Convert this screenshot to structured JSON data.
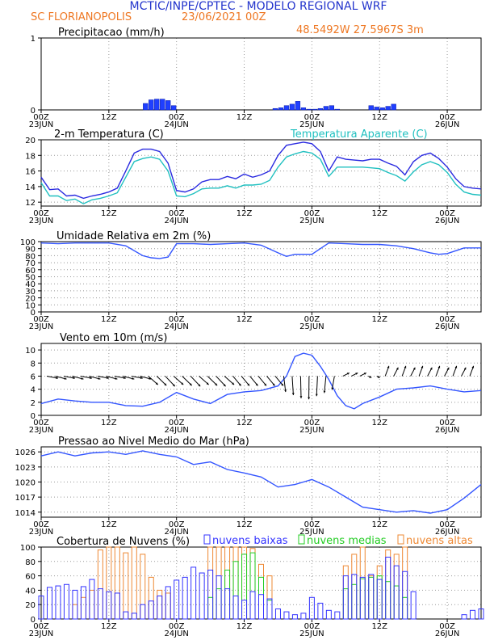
{
  "header": {
    "title": "MCTIC/INPE/CPTEC - MODELO REGIONAL WRF",
    "location": "SC FLORIANOPOLIS",
    "run": "23/06/2021 00Z",
    "coords": "48.5492W 27.5967S 3m"
  },
  "time_axis": {
    "ticks": [
      "00Z",
      "12Z",
      "00Z",
      "12Z",
      "00Z",
      "12Z",
      "00Z"
    ],
    "dates": [
      "23JUN",
      "",
      "24JUN",
      "",
      "25JUN",
      "",
      "26JUN"
    ]
  },
  "colors": {
    "precip": "#1f3fff",
    "temp": "#2a2ae0",
    "apparent": "#20c0c0",
    "line": "#3355ff",
    "low": "#3333ff",
    "mid": "#22cc22",
    "high": "#ee8833",
    "title_blue": "#2233cc",
    "orange": "#ee7722"
  },
  "chart_data": [
    {
      "type": "bar",
      "title": "Precipitacao (mm/h)",
      "ylim": [
        0,
        1
      ],
      "yticks": [
        "0",
        "1"
      ],
      "x_hours": [
        37,
        39,
        41,
        43,
        45,
        47,
        83,
        85,
        87,
        89,
        91,
        93,
        95,
        97,
        99,
        101,
        103,
        105,
        117,
        119,
        121,
        123,
        125
      ],
      "values": [
        0.09,
        0.14,
        0.15,
        0.15,
        0.13,
        0.06,
        0.02,
        0.03,
        0.06,
        0.08,
        0.12,
        0.03,
        0.01,
        0.01,
        0.02,
        0.05,
        0.06,
        0.01,
        0.06,
        0.04,
        0.03,
        0.05,
        0.08
      ]
    },
    {
      "type": "line",
      "title": "2-m Temperatura (C)",
      "legend": "Temperatura Aparente (C)",
      "ylim": [
        11.5,
        20
      ],
      "yticks": [
        "12",
        "14",
        "16",
        "18",
        "20"
      ],
      "x_hours": [
        0,
        3,
        6,
        9,
        12,
        15,
        18,
        21,
        24,
        27,
        30,
        33,
        36,
        39,
        42,
        45,
        48,
        51,
        54,
        57,
        60,
        63,
        66,
        69,
        72,
        75,
        78,
        81,
        84,
        87,
        90,
        93,
        96,
        99,
        102,
        105,
        108,
        111,
        114,
        117,
        120,
        123,
        126,
        129,
        132,
        135,
        138,
        141,
        144,
        147,
        150,
        153,
        156
      ],
      "series": [
        {
          "name": "temperature",
          "values": [
            15.2,
            13.6,
            13.7,
            12.8,
            12.9,
            12.5,
            12.8,
            13.0,
            13.3,
            13.8,
            16.0,
            18.3,
            18.8,
            18.8,
            18.5,
            17.0,
            13.5,
            13.3,
            13.7,
            14.6,
            14.9,
            14.9,
            15.3,
            15.0,
            15.6,
            15.2,
            15.5,
            16.0,
            18.0,
            19.3,
            19.5,
            19.7,
            19.5,
            18.5,
            16.0,
            17.8,
            17.5,
            17.4,
            17.3,
            17.5,
            17.5,
            17.0,
            16.6,
            15.5,
            17.2,
            18.0,
            18.3,
            17.6,
            16.5,
            15.0,
            14.0,
            13.8,
            13.7
          ]
        },
        {
          "name": "Temperatura Aparente (C)",
          "values": [
            14.5,
            12.8,
            12.8,
            12.2,
            12.4,
            11.8,
            12.3,
            12.5,
            12.8,
            13.2,
            15.2,
            17.2,
            17.6,
            17.8,
            17.5,
            16.0,
            12.8,
            12.7,
            13.1,
            13.7,
            13.8,
            13.8,
            14.1,
            13.8,
            14.2,
            14.2,
            14.3,
            14.8,
            16.5,
            17.8,
            18.2,
            18.5,
            18.3,
            17.5,
            15.3,
            16.5,
            16.5,
            16.5,
            16.5,
            16.4,
            16.3,
            15.8,
            15.4,
            14.7,
            15.9,
            16.8,
            17.2,
            16.8,
            15.8,
            14.3,
            13.3,
            13.0,
            12.9
          ]
        }
      ]
    },
    {
      "type": "line",
      "title": "Umidade Relativa em 2m (%)",
      "ylim": [
        0,
        100
      ],
      "yticks": [
        "0",
        "10",
        "20",
        "30",
        "40",
        "50",
        "60",
        "70",
        "80",
        "90",
        "100"
      ],
      "x_hours": [
        0,
        6,
        12,
        18,
        24,
        30,
        36,
        39,
        42,
        45,
        48,
        54,
        60,
        66,
        72,
        78,
        84,
        87,
        90,
        96,
        102,
        108,
        114,
        120,
        126,
        132,
        138,
        141,
        144,
        147,
        150,
        156
      ],
      "values": [
        98,
        97,
        98,
        98,
        98,
        94,
        80,
        77,
        76,
        78,
        97,
        97,
        96,
        97,
        98,
        95,
        84,
        79,
        82,
        82,
        98,
        97,
        96,
        96,
        94,
        90,
        84,
        82,
        83,
        87,
        91,
        91
      ]
    },
    {
      "type": "line",
      "title": "Vento em 10m (m/s)",
      "ylim": [
        0,
        11
      ],
      "yticks": [
        "0",
        "2",
        "4",
        "6",
        "8",
        "10"
      ],
      "x_hours": [
        0,
        6,
        12,
        18,
        24,
        30,
        36,
        42,
        48,
        54,
        60,
        66,
        72,
        78,
        84,
        87,
        90,
        93,
        96,
        99,
        102,
        105,
        108,
        111,
        114,
        120,
        126,
        132,
        138,
        144,
        150,
        156
      ],
      "values": [
        1.8,
        2.5,
        2.2,
        2.0,
        2.0,
        1.5,
        1.4,
        2.0,
        3.5,
        2.5,
        1.8,
        3.2,
        3.6,
        3.8,
        4.5,
        6.0,
        9.0,
        9.5,
        9.2,
        7.5,
        5.5,
        3.0,
        1.5,
        1.0,
        1.8,
        2.8,
        4.0,
        4.2,
        4.5,
        4.0,
        3.6,
        3.8
      ],
      "vectors_label": "wind vectors"
    },
    {
      "type": "line",
      "title": "Pressao ao Nivel Medio do Mar (hPa)",
      "ylim": [
        1013,
        1027
      ],
      "yticks": [
        "1014",
        "1017",
        "1020",
        "1023",
        "1026"
      ],
      "x_hours": [
        0,
        6,
        12,
        18,
        24,
        30,
        36,
        42,
        48,
        54,
        60,
        66,
        72,
        78,
        84,
        90,
        96,
        102,
        108,
        114,
        120,
        126,
        132,
        138,
        144,
        150,
        156
      ],
      "values": [
        1025.2,
        1026.0,
        1025.2,
        1025.8,
        1026.0,
        1025.5,
        1026.2,
        1025.5,
        1025.0,
        1023.5,
        1024.0,
        1022.5,
        1021.8,
        1021.0,
        1019.0,
        1019.5,
        1020.5,
        1019.0,
        1017.0,
        1015.0,
        1014.5,
        1014.0,
        1014.3,
        1013.8,
        1014.5,
        1016.8,
        1019.5
      ]
    },
    {
      "type": "bar",
      "title": "Cobertura de Nuvens (%)",
      "ylim": [
        0,
        100
      ],
      "yticks": [
        "0",
        "20",
        "40",
        "60",
        "80",
        "100"
      ],
      "legend": [
        "nuvens baixas",
        "nuvens medias",
        "nuvens altas"
      ],
      "x_hours": [
        0,
        3,
        6,
        9,
        12,
        15,
        18,
        21,
        24,
        27,
        30,
        33,
        36,
        39,
        42,
        45,
        48,
        51,
        54,
        57,
        60,
        63,
        66,
        69,
        72,
        75,
        78,
        81,
        84,
        87,
        90,
        93,
        96,
        99,
        102,
        105,
        108,
        111,
        114,
        117,
        120,
        123,
        126,
        129,
        132,
        135,
        138,
        141,
        144,
        147,
        150,
        153,
        156
      ],
      "series": [
        {
          "name": "nuvens baixas",
          "values": [
            32,
            44,
            46,
            48,
            40,
            45,
            55,
            42,
            38,
            36,
            10,
            8,
            20,
            25,
            32,
            45,
            54,
            58,
            72,
            64,
            68,
            60,
            42,
            32,
            26,
            38,
            34,
            28,
            14,
            10,
            6,
            8,
            30,
            22,
            12,
            10,
            60,
            62,
            58,
            62,
            55,
            86,
            74,
            66,
            38,
            0,
            0,
            0,
            0,
            0,
            6,
            12,
            14
          ]
        },
        {
          "name": "nuvens medias",
          "values": [
            0,
            0,
            0,
            0,
            0,
            0,
            0,
            0,
            0,
            0,
            0,
            0,
            0,
            0,
            0,
            0,
            0,
            0,
            0,
            0,
            30,
            42,
            68,
            80,
            90,
            92,
            58,
            26,
            0,
            0,
            0,
            0,
            0,
            0,
            0,
            0,
            42,
            48,
            56,
            58,
            60,
            52,
            46,
            30,
            0,
            0,
            0,
            0,
            0,
            0,
            0,
            0,
            0
          ]
        },
        {
          "name": "nuvens altas",
          "values": [
            0,
            0,
            0,
            0,
            20,
            30,
            40,
            96,
            100,
            100,
            92,
            100,
            90,
            58,
            40,
            36,
            0,
            0,
            0,
            0,
            100,
            100,
            100,
            100,
            100,
            98,
            76,
            60,
            0,
            0,
            0,
            0,
            0,
            0,
            0,
            0,
            74,
            90,
            100,
            60,
            74,
            96,
            90,
            100,
            0,
            0,
            0,
            0,
            0,
            0,
            0,
            0,
            0
          ]
        }
      ]
    }
  ]
}
